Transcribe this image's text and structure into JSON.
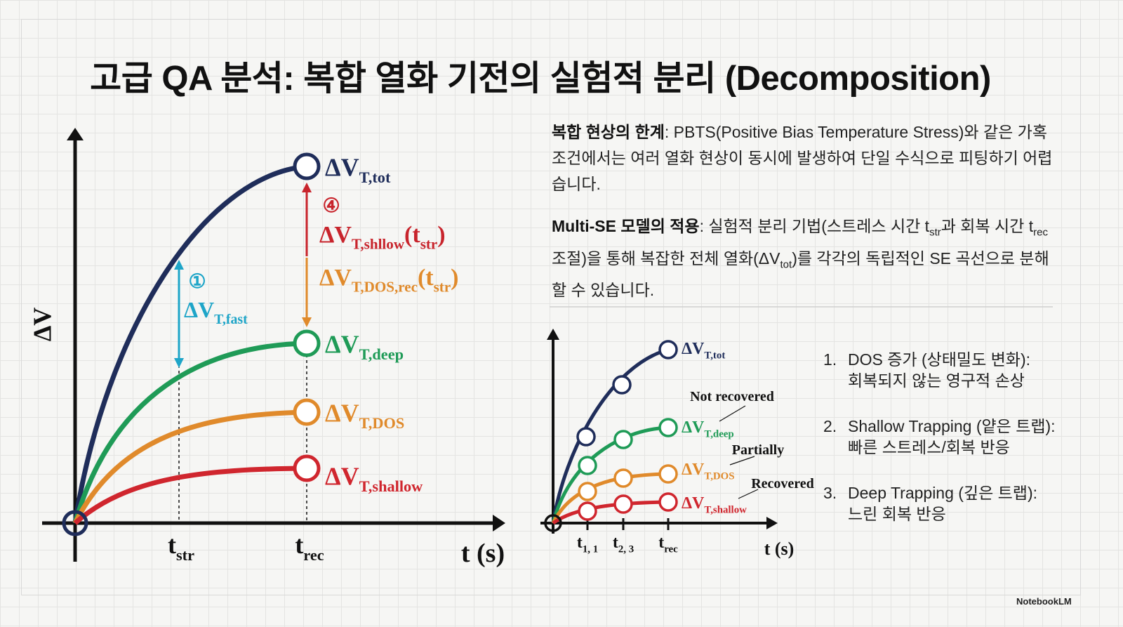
{
  "title": "고급 QA 분석: 복합 열화 기전의 실험적 분리 (Decomposition)",
  "main_chart": {
    "y_axis_label": "ΔV",
    "x_axis_label": "t (s)",
    "x_ticks": [
      [
        {
          "text": "t"
        },
        {
          "text": "str",
          "sub": true
        }
      ],
      [
        {
          "text": "t"
        },
        {
          "text": "rec",
          "sub": true
        }
      ]
    ],
    "curves": [
      {
        "label": [
          {
            "text": "ΔV"
          },
          {
            "text": "T,tot",
            "sub": true
          }
        ]
      },
      {
        "label": [
          {
            "text": "ΔV"
          },
          {
            "text": "T,deep",
            "sub": true
          }
        ]
      },
      {
        "label": [
          {
            "text": "ΔV"
          },
          {
            "text": "T,DOS",
            "sub": true
          }
        ]
      },
      {
        "label": [
          {
            "text": "ΔV"
          },
          {
            "text": "T,shallow",
            "sub": true
          }
        ]
      }
    ],
    "fast_number": "①",
    "fast_label": [
      {
        "text": "ΔV"
      },
      {
        "text": "T,fast",
        "sub": true
      }
    ],
    "shallow_number": "④",
    "shallow_label": [
      {
        "text": "ΔV"
      },
      {
        "text": "T,shllow",
        "sub": true
      },
      {
        "text": "(t"
      },
      {
        "text": "str",
        "sub": true
      },
      {
        "text": ")"
      }
    ],
    "dos_rec_label": [
      {
        "text": "ΔV"
      },
      {
        "text": "T,DOS,rec",
        "sub": true
      },
      {
        "text": "(t"
      },
      {
        "text": "str",
        "sub": true
      },
      {
        "text": ")"
      }
    ]
  },
  "paragraphs": [
    {
      "lead": "복합 현상의 한계",
      "body": [
        {
          "text": ": PBTS(Positive Bias Temperature Stress)와 같은 가혹 조건에서는 여러 열화 현상이 동시에 발생하여 단일 수식으로 피팅하기 어렵습니다."
        }
      ]
    },
    {
      "lead": "Multi-SE 모델의 적용",
      "body": [
        {
          "text": ": 실험적 분리 기법(스트레스 시간 t"
        },
        {
          "text": "str",
          "sub": true
        },
        {
          "text": "과 회복 시간 t"
        },
        {
          "text": "rec",
          "sub": true
        },
        {
          "text": " 조절)을 통해 복잡한 전체 열화(ΔV"
        },
        {
          "text": "tot",
          "sub": true
        },
        {
          "text": ")를 각각의 독립적인 SE 곡선으로 분해할 수 있습니다."
        }
      ]
    }
  ],
  "small_chart": {
    "x_axis_label": "t (s)",
    "x_ticks": [
      [
        {
          "text": "t"
        },
        {
          "text": "1, 1",
          "sub": true
        }
      ],
      [
        {
          "text": "t"
        },
        {
          "text": "2, 3",
          "sub": true
        }
      ],
      [
        {
          "text": "t"
        },
        {
          "text": "rec",
          "sub": true
        }
      ]
    ],
    "curves": [
      {
        "label": [
          {
            "text": "ΔV"
          },
          {
            "text": "T,tot",
            "sub": true
          }
        ]
      },
      {
        "label": [
          {
            "text": "ΔV"
          },
          {
            "text": "T,deep",
            "sub": true
          }
        ]
      },
      {
        "label": [
          {
            "text": "ΔV"
          },
          {
            "text": "T,DOS",
            "sub": true
          }
        ]
      },
      {
        "label": [
          {
            "text": "ΔV"
          },
          {
            "text": "T,shallow",
            "sub": true
          }
        ]
      }
    ],
    "annotations": [
      "Not recovered",
      "Partially",
      "Recovered"
    ]
  },
  "list": [
    {
      "number": "1.",
      "title": "DOS 증가 (상태밀도 변화):",
      "detail": "회복되지 않는 영구적 손상"
    },
    {
      "number": "2.",
      "title": "Shallow Trapping (얕은 트랩):",
      "detail": "빠른 스트레스/회복 반응"
    },
    {
      "number": "3.",
      "title": "Deep Trapping (깊은 트랩):",
      "detail": "느린 회복 반응"
    }
  ],
  "brand": "NotebookLM"
}
